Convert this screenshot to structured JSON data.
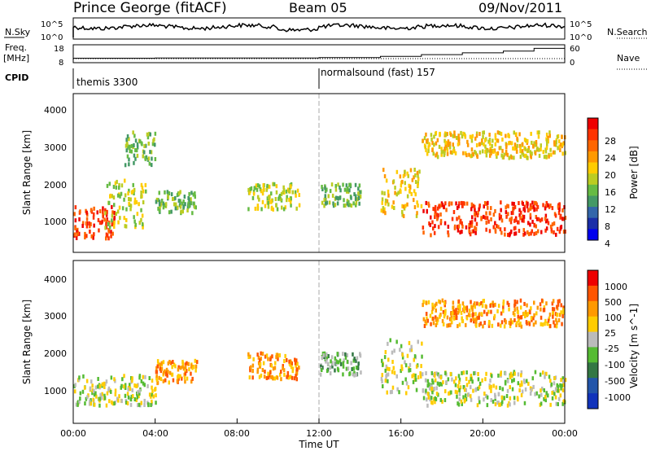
{
  "header": {
    "station": "Prince George (fitACF)",
    "beam": "Beam 05",
    "date": "09/Nov/2011"
  },
  "noise_panel": {
    "left_label": "N.Sky",
    "left_ticks": [
      "10^5",
      "10^0"
    ],
    "right_label": "N.Search",
    "right_ticks": [
      "10^5",
      "10^0"
    ]
  },
  "freq_panel": {
    "left_label_1": "Freq.",
    "left_label_2": "[MHz]",
    "left_ticks": [
      "18",
      "8"
    ],
    "right_label": "Nave",
    "right_ticks": [
      "60",
      "0"
    ]
  },
  "cpid": {
    "label": "CPID",
    "modes": [
      {
        "name": "themis 3300",
        "start_hour": 0
      },
      {
        "name": "normalsound (fast) 157",
        "start_hour": 12
      }
    ]
  },
  "power_panel": {
    "ylabel": "Slant Range [km]",
    "yticks": [
      "4000",
      "3000",
      "2000",
      "1000"
    ],
    "colorbar_label": "Power [dB]",
    "colorbar_ticks": [
      "28",
      "24",
      "20",
      "16",
      "12",
      "8",
      "4"
    ],
    "colors": [
      "#0000ee",
      "#1a2ea8",
      "#3366aa",
      "#449966",
      "#66bb44",
      "#bbcc22",
      "#ffcc00",
      "#ff9900",
      "#ff6600",
      "#ff3300",
      "#ee0000"
    ]
  },
  "velocity_panel": {
    "ylabel": "Slant Range [km]",
    "yticks": [
      "4000",
      "3000",
      "2000",
      "1000"
    ],
    "colorbar_label": "Velocity [m s^-1]",
    "colorbar_ticks": [
      "1000",
      "500",
      "100",
      "25",
      "-25",
      "-100",
      "-500",
      "-1000"
    ],
    "colors": [
      "#1133bb",
      "#2255aa",
      "#337744",
      "#55bb33",
      "#bbbbbb",
      "#ffcc00",
      "#ff9900",
      "#ff5500",
      "#ee0000"
    ]
  },
  "time_axis": {
    "ticks": [
      "00:00",
      "04:00",
      "08:00",
      "12:00",
      "16:00",
      "20:00",
      "00:00"
    ],
    "label": "Time UT"
  },
  "chart_data": [
    {
      "type": "line",
      "title": "N.Sky / N.Search",
      "x_range_hours": [
        0,
        24
      ],
      "note": "noise level trace, log scale 10^0 to 10^5"
    },
    {
      "type": "line",
      "title": "Freq. / Nave",
      "x_hours": [
        0,
        4,
        8,
        12,
        15,
        17,
        19,
        21,
        22.5,
        24
      ],
      "freq_mhz": [
        10.5,
        10.6,
        10.6,
        10.8,
        11.5,
        12.5,
        13.5,
        14.5,
        16,
        17
      ],
      "ylim": [
        8,
        18
      ]
    },
    {
      "type": "heatmap",
      "title": "Power [dB]",
      "x_range_hours": [
        0,
        24
      ],
      "ylim_km": [
        180,
        4500
      ],
      "echo_regions": [
        {
          "t0": 0.0,
          "t1": 2.0,
          "r0": 600,
          "r1": 1500,
          "level": 9
        },
        {
          "t0": 1.5,
          "t1": 3.5,
          "r0": 900,
          "r1": 2200,
          "level": 5
        },
        {
          "t0": 2.5,
          "t1": 4.0,
          "r0": 2600,
          "r1": 3500,
          "level": 4
        },
        {
          "t0": 4.0,
          "t1": 6.0,
          "r0": 1300,
          "r1": 1900,
          "level": 4
        },
        {
          "t0": 8.5,
          "t1": 11.0,
          "r0": 1400,
          "r1": 2100,
          "level": 5
        },
        {
          "t0": 12.0,
          "t1": 14.0,
          "r0": 1500,
          "r1": 2100,
          "level": 4
        },
        {
          "t0": 15.0,
          "t1": 17.0,
          "r0": 1200,
          "r1": 2500,
          "level": 6
        },
        {
          "t0": 17.0,
          "t1": 24.0,
          "r0": 700,
          "r1": 1600,
          "level": 9
        },
        {
          "t0": 17.0,
          "t1": 24.0,
          "r0": 2800,
          "r1": 3500,
          "level": 6
        }
      ]
    },
    {
      "type": "heatmap",
      "title": "Velocity [m s^-1]",
      "x_range_hours": [
        0,
        24
      ],
      "ylim_km": [
        180,
        4500
      ],
      "echo_regions": [
        {
          "t0": 0.0,
          "t1": 4.0,
          "r0": 700,
          "r1": 1500,
          "level": 4
        },
        {
          "t0": 4.0,
          "t1": 6.0,
          "r0": 1300,
          "r1": 1900,
          "level": 6
        },
        {
          "t0": 8.5,
          "t1": 11.0,
          "r0": 1400,
          "r1": 2100,
          "level": 6
        },
        {
          "t0": 12.0,
          "t1": 14.0,
          "r0": 1500,
          "r1": 2100,
          "level": 3
        },
        {
          "t0": 15.0,
          "t1": 17.0,
          "r0": 1000,
          "r1": 2500,
          "level": 4
        },
        {
          "t0": 17.0,
          "t1": 24.0,
          "r0": 700,
          "r1": 1600,
          "level": 4
        },
        {
          "t0": 17.0,
          "t1": 24.0,
          "r0": 2800,
          "r1": 3500,
          "level": 6
        }
      ]
    }
  ]
}
